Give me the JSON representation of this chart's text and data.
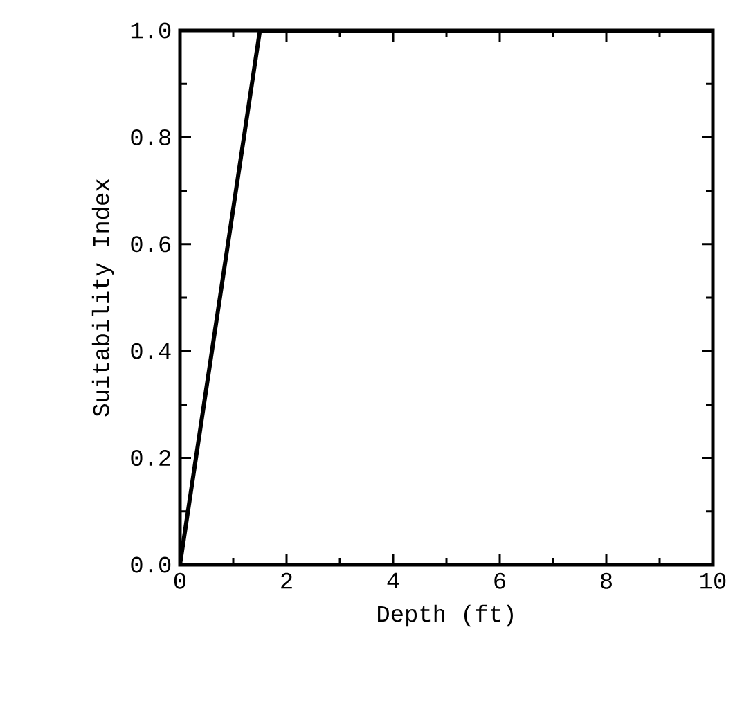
{
  "chart_data": {
    "type": "line",
    "xlabel": "Depth (ft)",
    "ylabel": "Suitability Index",
    "x": [
      0,
      1.5,
      10
    ],
    "values": [
      0,
      1.0,
      1.0
    ],
    "color": "#000000",
    "xlim": [
      0,
      10
    ],
    "ylim": [
      0,
      1.0
    ],
    "xticks": [
      {
        "value": 0,
        "label": "0"
      },
      {
        "value": 2,
        "label": "2"
      },
      {
        "value": 4,
        "label": "4"
      },
      {
        "value": 6,
        "label": "6"
      },
      {
        "value": 8,
        "label": "8"
      },
      {
        "value": 10,
        "label": "10"
      }
    ],
    "yticks": [
      {
        "value": 0,
        "label": "0.0"
      },
      {
        "value": 0.2,
        "label": "0.2"
      },
      {
        "value": 0.4,
        "label": "0.4"
      },
      {
        "value": 0.6,
        "label": "0.6"
      },
      {
        "value": 0.8,
        "label": "0.8"
      },
      {
        "value": 1.0,
        "label": "1.0"
      }
    ],
    "grid": false,
    "line_style": "solid"
  }
}
